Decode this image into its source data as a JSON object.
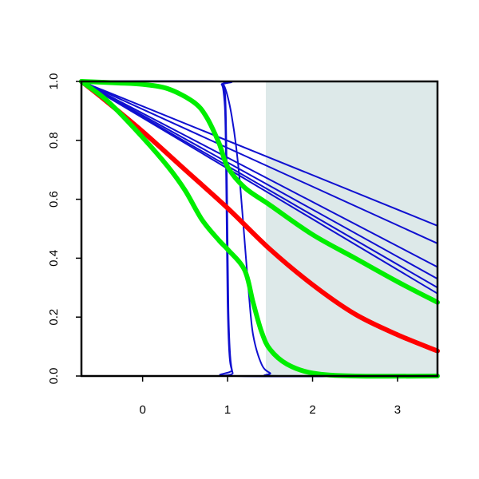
{
  "chart_data": {
    "type": "line",
    "title": "",
    "xlabel": "",
    "ylabel": "",
    "xlim": [
      -0.72,
      3.47
    ],
    "ylim": [
      0,
      1
    ],
    "x_ticks": [
      0,
      1,
      2,
      3
    ],
    "y_ticks": [
      0.0,
      0.2,
      0.4,
      0.6,
      0.8,
      1.0
    ],
    "x_tick_labels": [
      "0",
      "1",
      "2",
      "3"
    ],
    "y_tick_labels": [
      "0.0",
      "0.2",
      "0.4",
      "0.6",
      "0.8",
      "1.0"
    ],
    "grid": false,
    "shaded_region": {
      "x_from": 1.45,
      "x_to": 3.47,
      "color": "#dde9e9"
    },
    "colors": {
      "blue": "#1010d0",
      "red": "#ff0000",
      "green": "#00ee00",
      "axis": "#000000"
    },
    "series": [
      {
        "color": "blue",
        "x": [
          -0.72,
          3.47
        ],
        "y": [
          1.0,
          0.51
        ]
      },
      {
        "color": "blue",
        "x": [
          -0.72,
          3.47
        ],
        "y": [
          1.0,
          0.45
        ]
      },
      {
        "color": "blue",
        "x": [
          -0.72,
          3.47
        ],
        "y": [
          1.0,
          0.37
        ]
      },
      {
        "color": "blue",
        "x": [
          -0.72,
          3.47
        ],
        "y": [
          1.0,
          0.33
        ]
      },
      {
        "color": "blue",
        "x": [
          -0.72,
          3.47
        ],
        "y": [
          1.0,
          0.3
        ]
      },
      {
        "color": "blue",
        "x": [
          -0.72,
          3.47
        ],
        "y": [
          1.0,
          0.28
        ]
      },
      {
        "color": "blue",
        "x": [
          -0.72,
          0.9,
          0.93,
          0.95,
          0.97,
          0.98,
          0.99,
          1.0,
          1.02,
          1.05,
          1.1,
          3.47
        ],
        "y": [
          1.0,
          1.0,
          0.99,
          0.97,
          0.9,
          0.75,
          0.5,
          0.25,
          0.08,
          0.02,
          0.0,
          0.0
        ]
      },
      {
        "color": "blue",
        "x": [
          -0.72,
          0.92,
          0.95,
          0.97,
          0.98,
          0.99,
          1.0,
          1.01,
          1.03,
          1.06,
          1.1,
          3.47
        ],
        "y": [
          1.0,
          1.0,
          0.99,
          0.96,
          0.88,
          0.7,
          0.45,
          0.22,
          0.07,
          0.01,
          0.0,
          0.0
        ]
      },
      {
        "color": "blue",
        "x": [
          -0.72,
          0.88,
          0.95,
          1.0,
          1.05,
          1.1,
          1.15,
          1.2,
          1.25,
          1.3,
          1.4,
          1.5,
          1.6,
          3.47
        ],
        "y": [
          1.0,
          1.0,
          0.99,
          0.95,
          0.88,
          0.78,
          0.64,
          0.46,
          0.28,
          0.14,
          0.04,
          0.01,
          0.0,
          0.0
        ]
      },
      {
        "color": "red",
        "x": [
          -0.72,
          -0.5,
          0.0,
          0.5,
          1.0,
          1.5,
          2.0,
          2.5,
          3.0,
          3.47
        ],
        "y": [
          1.0,
          0.95,
          0.83,
          0.7,
          0.57,
          0.43,
          0.31,
          0.21,
          0.14,
          0.085
        ]
      },
      {
        "color": "green",
        "x": [
          -0.72,
          -0.3,
          0.0,
          0.3,
          0.6,
          0.75,
          0.9,
          1.0,
          1.2,
          1.5,
          2.0,
          2.5,
          3.0,
          3.47
        ],
        "y": [
          1.0,
          0.995,
          0.99,
          0.975,
          0.93,
          0.88,
          0.79,
          0.71,
          0.64,
          0.58,
          0.48,
          0.4,
          0.32,
          0.25
        ]
      },
      {
        "color": "green",
        "x": [
          -0.72,
          -0.4,
          0.0,
          0.3,
          0.5,
          0.7,
          0.9,
          1.0,
          1.2,
          1.3,
          1.4,
          1.5,
          1.7,
          2.0,
          2.5,
          3.47
        ],
        "y": [
          1.0,
          0.93,
          0.81,
          0.71,
          0.63,
          0.53,
          0.46,
          0.43,
          0.36,
          0.25,
          0.15,
          0.09,
          0.04,
          0.01,
          0.0,
          0.0
        ]
      }
    ]
  }
}
